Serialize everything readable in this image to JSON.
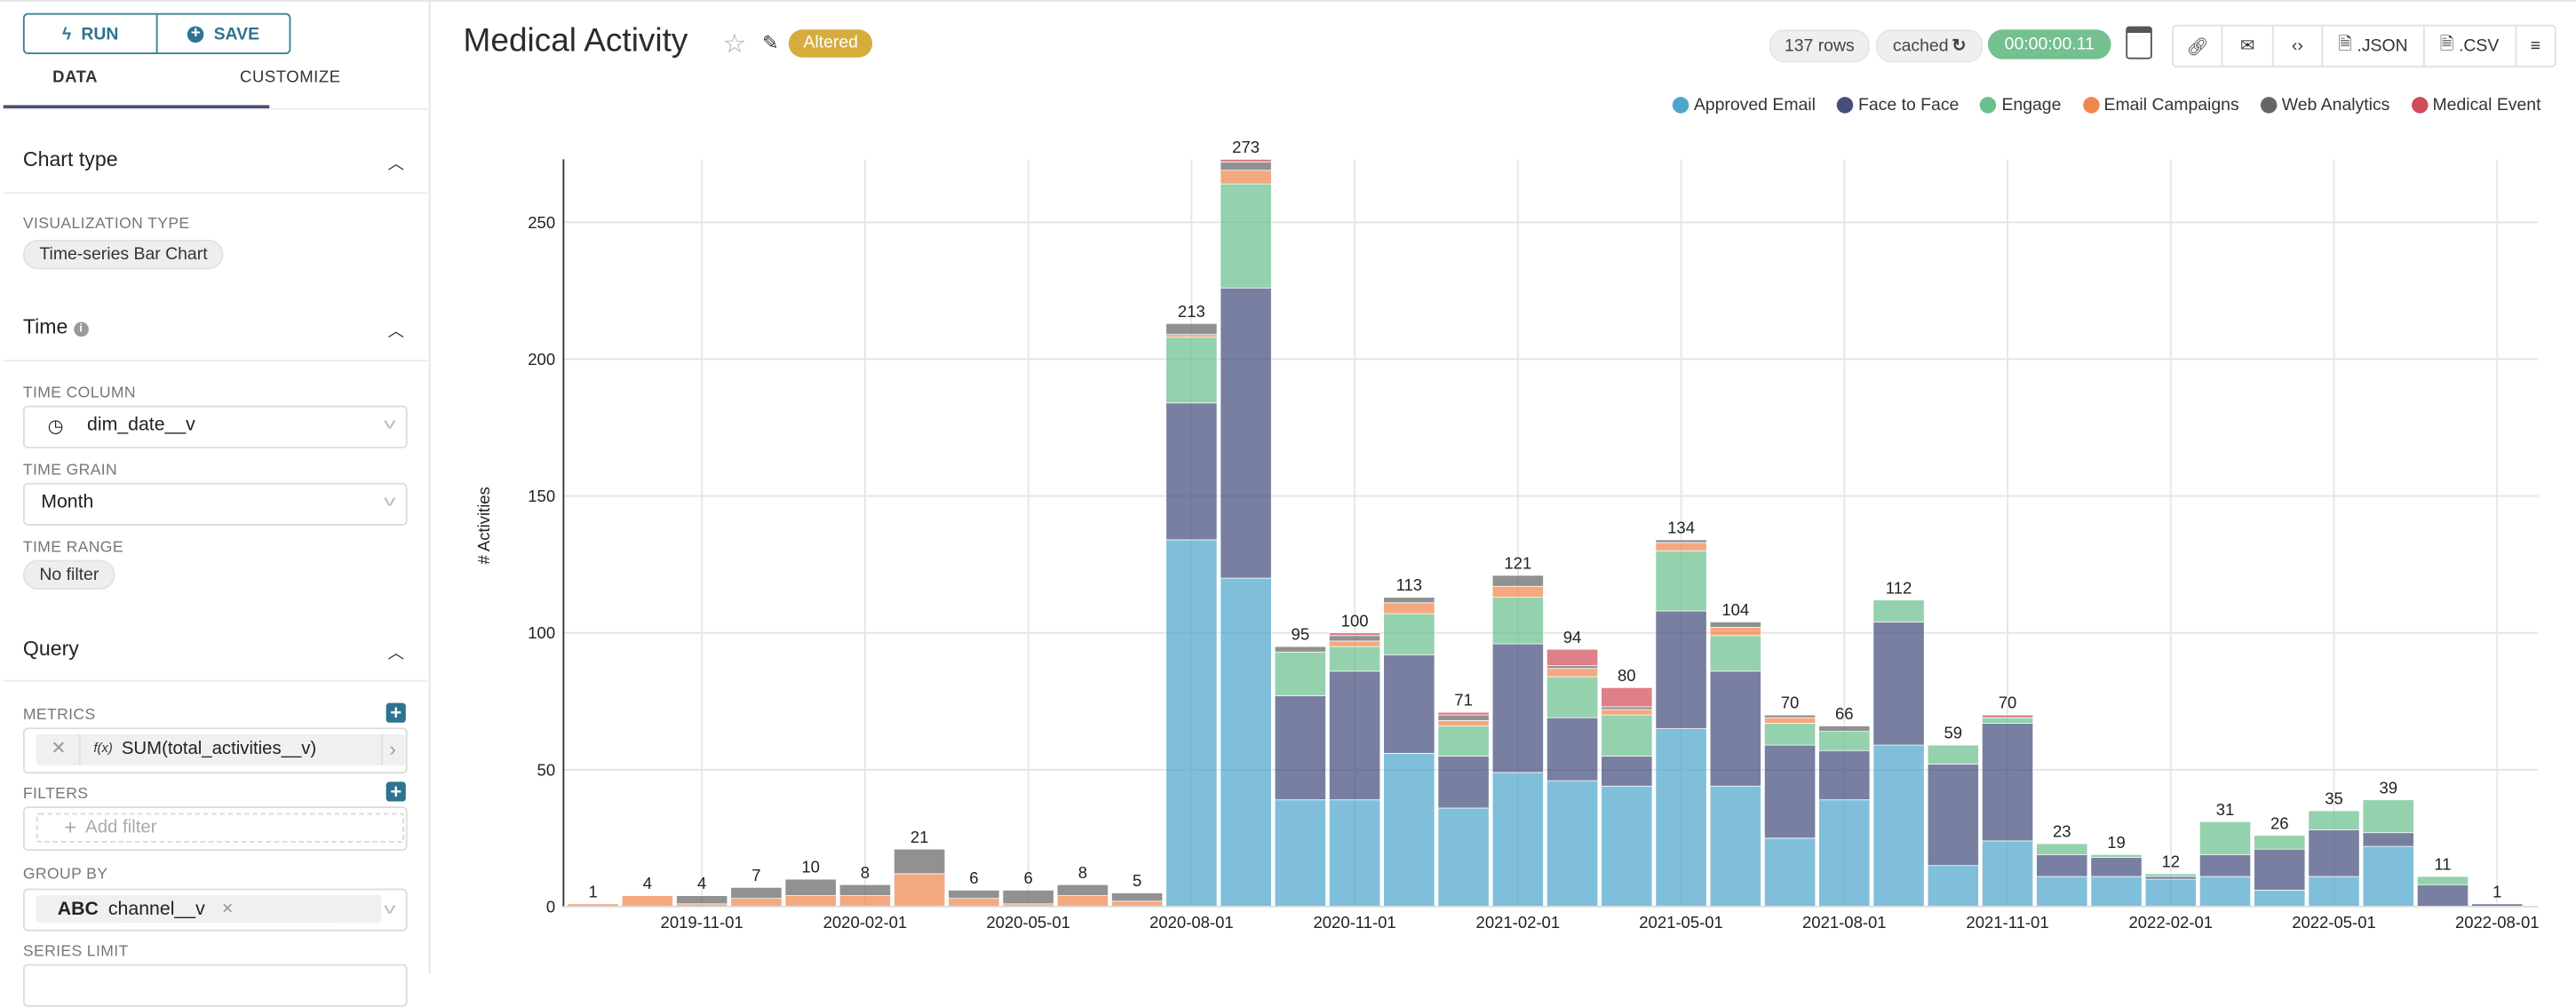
{
  "panel": {
    "run_label": "RUN",
    "save_label": "SAVE",
    "tabs": [
      {
        "label": "DATA",
        "active": true
      },
      {
        "label": "CUSTOMIZE",
        "active": false
      }
    ],
    "chart_type": {
      "title": "Chart type",
      "viz_label": "VISUALIZATION TYPE",
      "viz_value": "Time-series Bar Chart"
    },
    "time": {
      "title": "Time",
      "time_column_label": "TIME COLUMN",
      "time_column_value": "dim_date__v",
      "time_grain_label": "TIME GRAIN",
      "time_grain_value": "Month",
      "time_range_label": "TIME RANGE",
      "time_range_value": "No filter"
    },
    "query": {
      "title": "Query",
      "metrics_label": "METRICS",
      "metric_fx": "f(x)",
      "metric_value": "SUM(total_activities__v)",
      "filters_label": "FILTERS",
      "filter_placeholder": "Add filter",
      "group_by_label": "GROUP BY",
      "group_by_type": "ABC",
      "group_by_value": "channel__v",
      "series_limit_label": "SERIES LIMIT"
    }
  },
  "header": {
    "title": "Medical Activity",
    "badge": "Altered",
    "badge_color": "#d6ad3c",
    "rows": "137 rows",
    "cached": "cached",
    "timer": "00:00:00.11",
    "timer_color": "#74c08f",
    "json_label": ".JSON",
    "csv_label": ".CSV"
  },
  "chart_data": {
    "type": "bar",
    "stacked": true,
    "ylabel": "# Activities",
    "xlabel": "",
    "ylim": [
      0,
      273
    ],
    "yticks": [
      0,
      50,
      100,
      150,
      200,
      250
    ],
    "grid": true,
    "legend_position": "top-right",
    "x": [
      "2019-09-01",
      "2019-10-01",
      "2019-11-01",
      "2019-12-01",
      "2020-01-01",
      "2020-02-01",
      "2020-03-01",
      "2020-04-01",
      "2020-05-01",
      "2020-06-01",
      "2020-07-01",
      "2020-08-01",
      "2020-09-01",
      "2020-10-01",
      "2020-11-01",
      "2020-12-01",
      "2021-01-01",
      "2021-02-01",
      "2021-03-01",
      "2021-04-01",
      "2021-05-01",
      "2021-06-01",
      "2021-07-01",
      "2021-08-01",
      "2021-09-01",
      "2021-10-01",
      "2021-11-01",
      "2021-12-01",
      "2022-01-01",
      "2022-02-01",
      "2022-03-01",
      "2022-04-01",
      "2022-05-01",
      "2022-06-01",
      "2022-07-01",
      "2022-08-01"
    ],
    "xtick_labels": [
      "2019-11-01",
      "2020-02-01",
      "2020-05-01",
      "2020-08-01",
      "2020-11-01",
      "2021-02-01",
      "2021-05-01",
      "2021-08-01",
      "2021-11-01",
      "2022-02-01",
      "2022-05-01",
      "2022-08-01"
    ],
    "totals": [
      1,
      4,
      4,
      7,
      10,
      8,
      21,
      6,
      6,
      8,
      5,
      213,
      273,
      95,
      100,
      113,
      71,
      121,
      94,
      80,
      134,
      104,
      70,
      66,
      112,
      59,
      70,
      23,
      19,
      12,
      31,
      26,
      35,
      39,
      11,
      1
    ],
    "series": [
      {
        "name": "Approved Email",
        "color": "#4fa6cc",
        "values": [
          0,
          0,
          0,
          0,
          0,
          0,
          0,
          0,
          0,
          0,
          0,
          134,
          120,
          39,
          39,
          56,
          36,
          49,
          46,
          44,
          65,
          44,
          25,
          39,
          59,
          15,
          24,
          11,
          11,
          10,
          11,
          6,
          11,
          22,
          0,
          0
        ]
      },
      {
        "name": "Face to Face",
        "color": "#454e7c",
        "values": [
          0,
          0,
          0,
          0,
          0,
          0,
          0,
          0,
          0,
          0,
          0,
          50,
          106,
          38,
          47,
          36,
          19,
          47,
          23,
          11,
          43,
          42,
          34,
          18,
          45,
          37,
          43,
          8,
          7,
          1,
          8,
          15,
          17,
          5,
          8,
          1
        ]
      },
      {
        "name": "Engage",
        "color": "#6bbf8e",
        "values": [
          0,
          0,
          0,
          0,
          0,
          0,
          0,
          0,
          0,
          0,
          0,
          24,
          38,
          16,
          9,
          15,
          11,
          17,
          15,
          15,
          22,
          13,
          8,
          7,
          8,
          7,
          2,
          4,
          1,
          1,
          12,
          5,
          7,
          12,
          3,
          0
        ]
      },
      {
        "name": "Email Campaigns",
        "color": "#f0874d",
        "values": [
          1,
          4,
          1,
          3,
          4,
          4,
          12,
          3,
          1,
          4,
          2,
          1,
          5,
          0,
          2,
          4,
          2,
          4,
          3,
          2,
          3,
          3,
          2,
          0,
          0,
          0,
          0,
          0,
          0,
          0,
          0,
          0,
          0,
          0,
          0,
          0
        ]
      },
      {
        "name": "Web Analytics",
        "color": "#666666",
        "values": [
          0,
          0,
          3,
          4,
          6,
          4,
          9,
          3,
          5,
          4,
          3,
          4,
          3,
          2,
          2,
          2,
          2,
          4,
          1,
          1,
          1,
          2,
          1,
          2,
          0,
          0,
          0,
          0,
          0,
          0,
          0,
          0,
          0,
          0,
          0,
          0
        ]
      },
      {
        "name": "Medical Event",
        "color": "#d14d5b",
        "values": [
          0,
          0,
          0,
          0,
          0,
          0,
          0,
          0,
          0,
          0,
          0,
          0,
          1,
          0,
          1,
          0,
          1,
          0,
          6,
          7,
          0,
          0,
          0,
          0,
          0,
          0,
          1,
          0,
          0,
          0,
          0,
          0,
          0,
          0,
          0,
          0
        ]
      }
    ]
  }
}
